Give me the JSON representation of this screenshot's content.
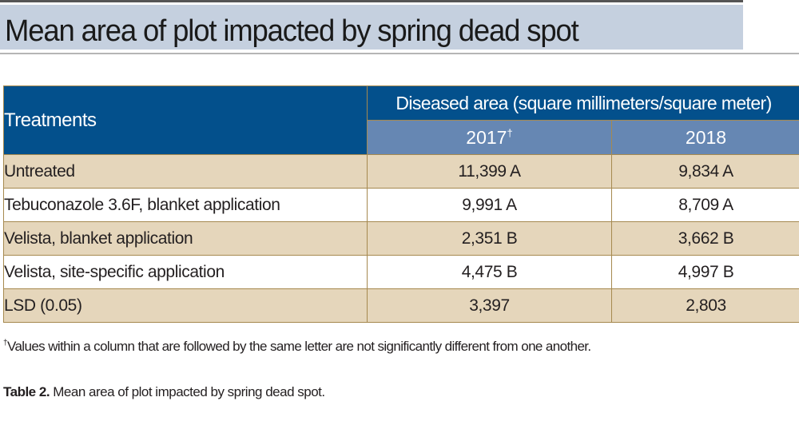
{
  "banner": {
    "title": "Mean area of plot impacted by spring dead spot",
    "background_color": "#c5d0df"
  },
  "table": {
    "header": {
      "row_label": "Treatments",
      "group_label": "Diseased area (square millimeters/square meter)",
      "years": [
        {
          "label": "2017",
          "marker": "†"
        },
        {
          "label": "2018",
          "marker": ""
        }
      ],
      "header_color": "#03508c",
      "subheader_color": "#6687b3"
    },
    "rows": [
      {
        "treatment": "Untreated",
        "y2017": "11,399 A",
        "y2018": "9,834 A"
      },
      {
        "treatment": "Tebuconazole 3.6F, blanket application",
        "y2017": "9,991 A",
        "y2018": "8,709 A"
      },
      {
        "treatment": "Velista, blanket application",
        "y2017": "2,351 B",
        "y2018": "3,662 B"
      },
      {
        "treatment": "Velista, site-specific application",
        "y2017": "4,475 B",
        "y2018": "4,997 B"
      },
      {
        "treatment": "LSD (0.05)",
        "y2017": "3,397",
        "y2018": "2,803"
      }
    ],
    "stripe_color": "#e5d6bb",
    "border_color": "#a6894f"
  },
  "footnote": {
    "marker": "†",
    "text": "Values within a column that are followed by the same letter are not significantly different from one another."
  },
  "caption": {
    "label": "Table 2.",
    "text": " Mean area of plot impacted by spring dead spot."
  }
}
